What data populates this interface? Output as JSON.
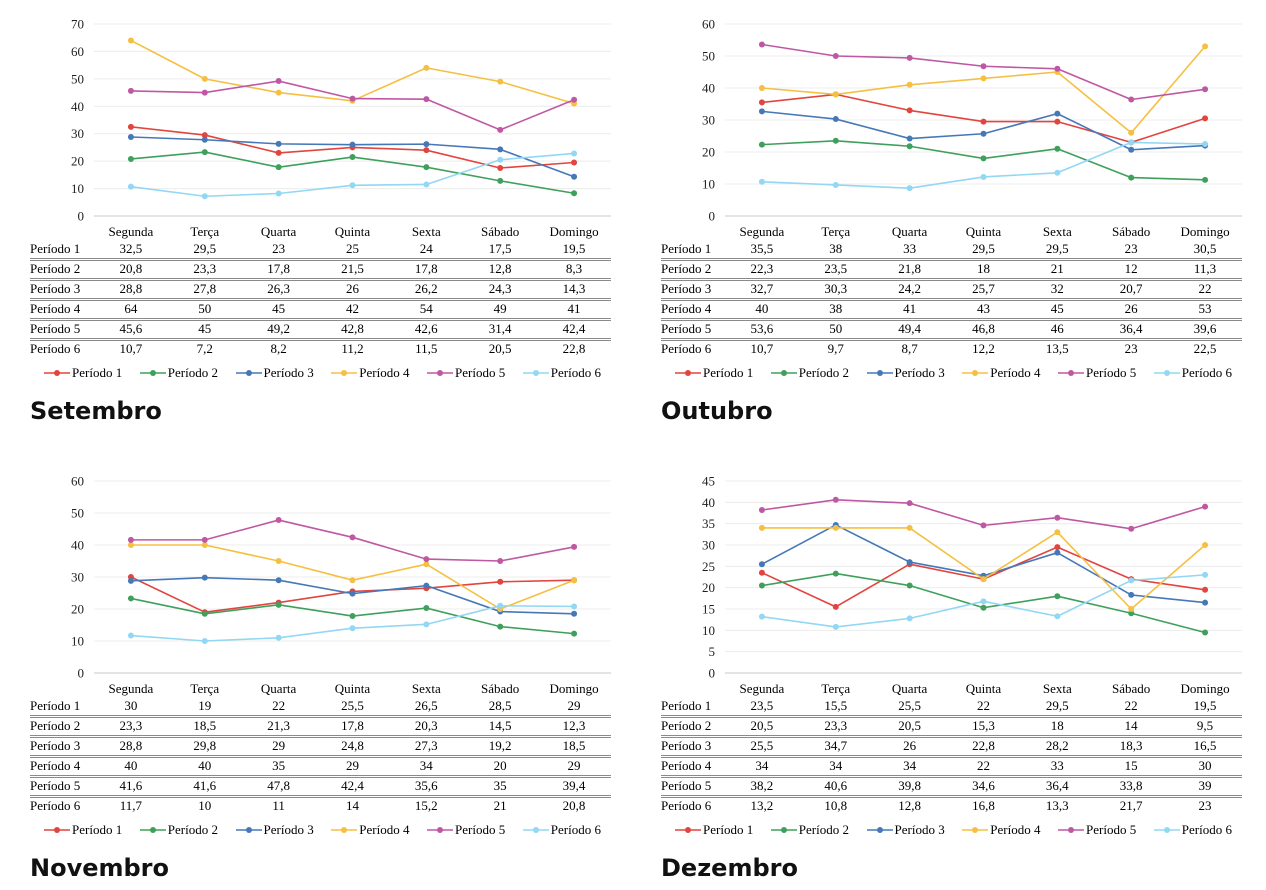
{
  "page": {
    "background": "#ffffff"
  },
  "palette": {
    "grid_line": "#ececec",
    "axis_line": "#c8c8c8",
    "table_rule": "#8a8a8a",
    "text": "#000000"
  },
  "chart_data": [
    {
      "type": "line",
      "title": "Setembro",
      "xlabel": "",
      "ylabel": "",
      "grid": true,
      "legend_position": "bottom",
      "categories": [
        "Segunda",
        "Terça",
        "Quarta",
        "Quinta",
        "Sexta",
        "Sábado",
        "Domingo"
      ],
      "y_axis": {
        "min": 0,
        "max": 70,
        "step": 10
      },
      "series": [
        {
          "name": "Período 1",
          "color": "#e2443e",
          "values": [
            32.5,
            29.5,
            23,
            25,
            24,
            17.5,
            19.5
          ]
        },
        {
          "name": "Período 2",
          "color": "#3fa05c",
          "values": [
            20.8,
            23.3,
            17.8,
            21.5,
            17.8,
            12.8,
            8.3
          ]
        },
        {
          "name": "Período 3",
          "color": "#4678b8",
          "values": [
            28.8,
            27.8,
            26.3,
            26,
            26.2,
            24.3,
            14.3
          ]
        },
        {
          "name": "Período 4",
          "color": "#f5bf42",
          "values": [
            64,
            50,
            45,
            42,
            54,
            49,
            41
          ]
        },
        {
          "name": "Período 5",
          "color": "#bf58a2",
          "values": [
            45.6,
            45,
            49.2,
            42.8,
            42.6,
            31.4,
            42.4
          ]
        },
        {
          "name": "Período 6",
          "color": "#92d7f3",
          "values": [
            10.7,
            7.2,
            8.2,
            11.2,
            11.5,
            20.5,
            22.8
          ]
        }
      ]
    },
    {
      "type": "line",
      "title": "Outubro",
      "xlabel": "",
      "ylabel": "",
      "grid": true,
      "legend_position": "bottom",
      "categories": [
        "Segunda",
        "Terça",
        "Quarta",
        "Quinta",
        "Sexta",
        "Sábado",
        "Domingo"
      ],
      "y_axis": {
        "min": 0,
        "max": 60,
        "step": 10
      },
      "series": [
        {
          "name": "Período 1",
          "color": "#e2443e",
          "values": [
            35.5,
            38,
            33,
            29.5,
            29.5,
            23,
            30.5
          ]
        },
        {
          "name": "Período 2",
          "color": "#3fa05c",
          "values": [
            22.3,
            23.5,
            21.8,
            18,
            21,
            12,
            11.3
          ]
        },
        {
          "name": "Período 3",
          "color": "#4678b8",
          "values": [
            32.7,
            30.3,
            24.2,
            25.7,
            32,
            20.7,
            22
          ]
        },
        {
          "name": "Período 4",
          "color": "#f5bf42",
          "values": [
            40,
            38,
            41,
            43,
            45,
            26,
            53
          ]
        },
        {
          "name": "Período 5",
          "color": "#bf58a2",
          "values": [
            53.6,
            50,
            49.4,
            46.8,
            46,
            36.4,
            39.6
          ]
        },
        {
          "name": "Período 6",
          "color": "#92d7f3",
          "values": [
            10.7,
            9.7,
            8.7,
            12.2,
            13.5,
            23,
            22.5
          ]
        }
      ]
    },
    {
      "type": "line",
      "title": "Novembro",
      "xlabel": "",
      "ylabel": "",
      "grid": true,
      "legend_position": "bottom",
      "categories": [
        "Segunda",
        "Terça",
        "Quarta",
        "Quinta",
        "Sexta",
        "Sábado",
        "Domingo"
      ],
      "y_axis": {
        "min": 0,
        "max": 60,
        "step": 10
      },
      "series": [
        {
          "name": "Período 1",
          "color": "#e2443e",
          "values": [
            30,
            19,
            22,
            25.5,
            26.5,
            28.5,
            29
          ]
        },
        {
          "name": "Período 2",
          "color": "#3fa05c",
          "values": [
            23.3,
            18.5,
            21.3,
            17.8,
            20.3,
            14.5,
            12.3
          ]
        },
        {
          "name": "Período 3",
          "color": "#4678b8",
          "values": [
            28.8,
            29.8,
            29,
            24.8,
            27.3,
            19.2,
            18.5
          ]
        },
        {
          "name": "Período 4",
          "color": "#f5bf42",
          "values": [
            40,
            40,
            35,
            29,
            34,
            20,
            29
          ]
        },
        {
          "name": "Período 5",
          "color": "#bf58a2",
          "values": [
            41.6,
            41.6,
            47.8,
            42.4,
            35.6,
            35,
            39.4
          ]
        },
        {
          "name": "Período 6",
          "color": "#92d7f3",
          "values": [
            11.7,
            10,
            11,
            14,
            15.2,
            21,
            20.8
          ]
        }
      ]
    },
    {
      "type": "line",
      "title": "Dezembro",
      "xlabel": "",
      "ylabel": "",
      "grid": true,
      "legend_position": "bottom",
      "categories": [
        "Segunda",
        "Terça",
        "Quarta",
        "Quinta",
        "Sexta",
        "Sábado",
        "Domingo"
      ],
      "y_axis": {
        "min": 0,
        "max": 45,
        "step": 5
      },
      "series": [
        {
          "name": "Período 1",
          "color": "#e2443e",
          "values": [
            23.5,
            15.5,
            25.5,
            22,
            29.5,
            22,
            19.5
          ]
        },
        {
          "name": "Período 2",
          "color": "#3fa05c",
          "values": [
            20.5,
            23.3,
            20.5,
            15.3,
            18,
            14,
            9.5
          ]
        },
        {
          "name": "Período 3",
          "color": "#4678b8",
          "values": [
            25.5,
            34.7,
            26,
            22.8,
            28.2,
            18.3,
            16.5
          ]
        },
        {
          "name": "Período 4",
          "color": "#f5bf42",
          "values": [
            34,
            34,
            34,
            22,
            33,
            15,
            30
          ]
        },
        {
          "name": "Período 5",
          "color": "#bf58a2",
          "values": [
            38.2,
            40.6,
            39.8,
            34.6,
            36.4,
            33.8,
            39
          ]
        },
        {
          "name": "Período 6",
          "color": "#92d7f3",
          "values": [
            13.2,
            10.8,
            12.8,
            16.8,
            13.3,
            21.7,
            23
          ]
        }
      ]
    }
  ]
}
